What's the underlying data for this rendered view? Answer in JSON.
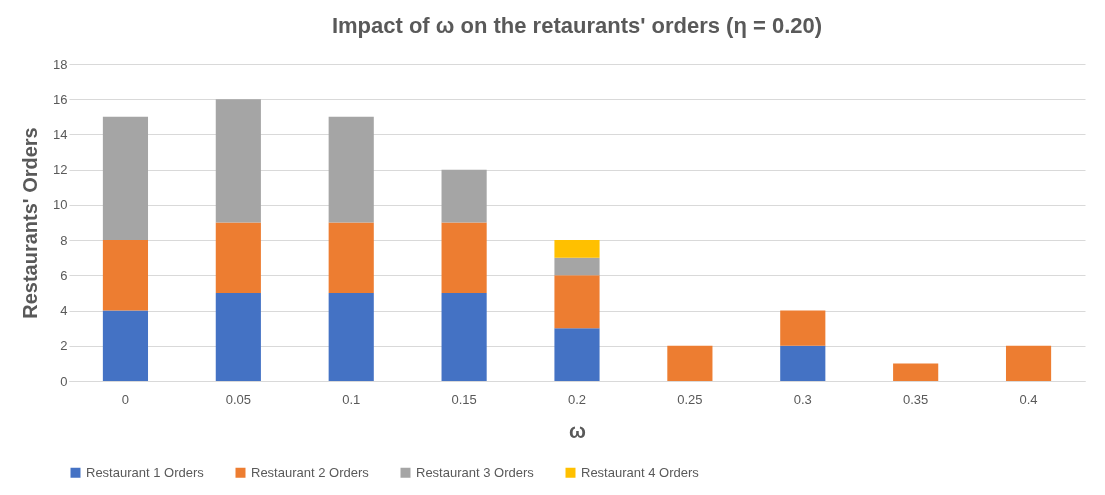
{
  "chart_data": {
    "type": "bar",
    "title": "Impact of ω on the retaurants' orders (η = 0.20)",
    "xlabel": "ω",
    "ylabel": "Restaurants' Orders",
    "categories": [
      "0",
      "0.05",
      "0.1",
      "0.15",
      "0.2",
      "0.25",
      "0.3",
      "0.35",
      "0.4"
    ],
    "stacked": true,
    "series": [
      {
        "name": "Restaurant 1 Orders",
        "color": "#4472c4",
        "values": [
          4,
          5,
          5,
          5,
          3,
          null,
          2,
          null,
          null
        ]
      },
      {
        "name": "Restaurant 2 Orders",
        "color": "#ed7d31",
        "values": [
          4,
          4,
          4,
          4,
          3,
          2,
          2,
          1,
          2
        ]
      },
      {
        "name": "Restaurant 3 Orders",
        "color": "#a5a5a5",
        "values": [
          7,
          7,
          6,
          3,
          1,
          null,
          null,
          null,
          null
        ]
      },
      {
        "name": "Restaurant 4 Orders",
        "color": "#ffc000",
        "values": [
          null,
          null,
          null,
          null,
          1,
          null,
          null,
          null,
          null
        ]
      }
    ],
    "ylim": [
      0,
      18
    ],
    "yticks": [
      0,
      2,
      4,
      6,
      8,
      10,
      12,
      14,
      16,
      18
    ],
    "grid": "y",
    "legend": "bottom"
  }
}
